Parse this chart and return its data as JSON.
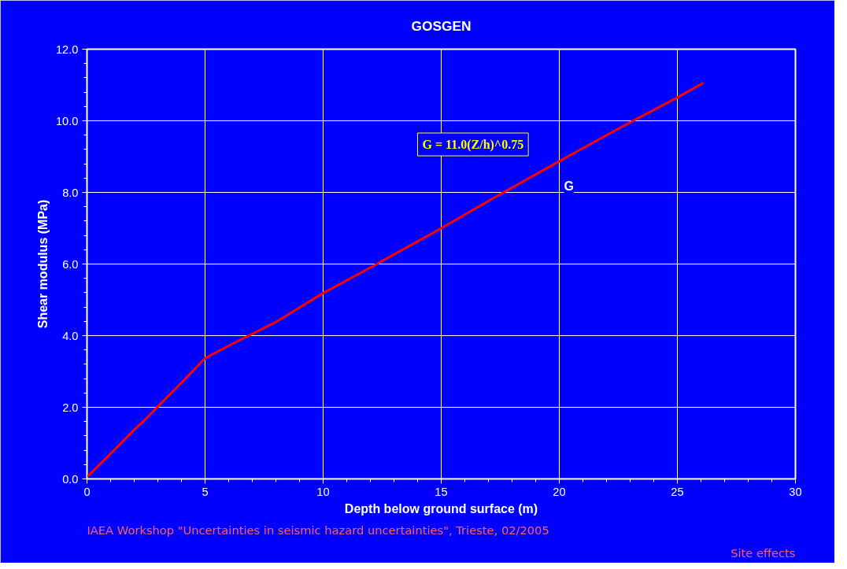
{
  "chart_data": {
    "type": "line",
    "title": "GOSGEN",
    "xlabel": "Depth below ground surface (m)",
    "ylabel": "Shear modulus (MPa)",
    "series": [
      {
        "name": "G",
        "color": "#ff0000",
        "x": [
          0,
          1,
          2,
          2.5,
          3,
          4,
          5,
          6,
          7,
          8,
          10,
          12,
          15,
          17.5,
          20,
          22.5,
          25,
          26.1
        ],
        "values": [
          0.05,
          0.7,
          1.37,
          1.68,
          2.02,
          2.68,
          3.37,
          3.72,
          4.05,
          4.38,
          5.19,
          5.9,
          7.0,
          7.95,
          8.87,
          9.78,
          10.65,
          11.06
        ]
      }
    ],
    "xlim": [
      0,
      30
    ],
    "ylim": [
      0,
      12
    ],
    "xticks": [
      0,
      5,
      10,
      15,
      20,
      25,
      30
    ],
    "yticks": [
      {
        "value": 0,
        "label": "0.0"
      },
      {
        "value": 2,
        "label": "2.0"
      },
      {
        "value": 4,
        "label": "4.0"
      },
      {
        "value": 6,
        "label": "6.0"
      },
      {
        "value": 8,
        "label": "8.0"
      },
      {
        "value": 10,
        "label": "10.0"
      },
      {
        "value": 12,
        "label": "12.0"
      }
    ],
    "grid": true,
    "marker": "none",
    "line_style": "solid",
    "annotations": [
      "G = 11.0(Z/h)^0.75",
      "IAEA Workshop \"Uncertainties in seismic hazard uncertainties\", Trieste, 02/2005",
      "Site effects"
    ]
  }
}
